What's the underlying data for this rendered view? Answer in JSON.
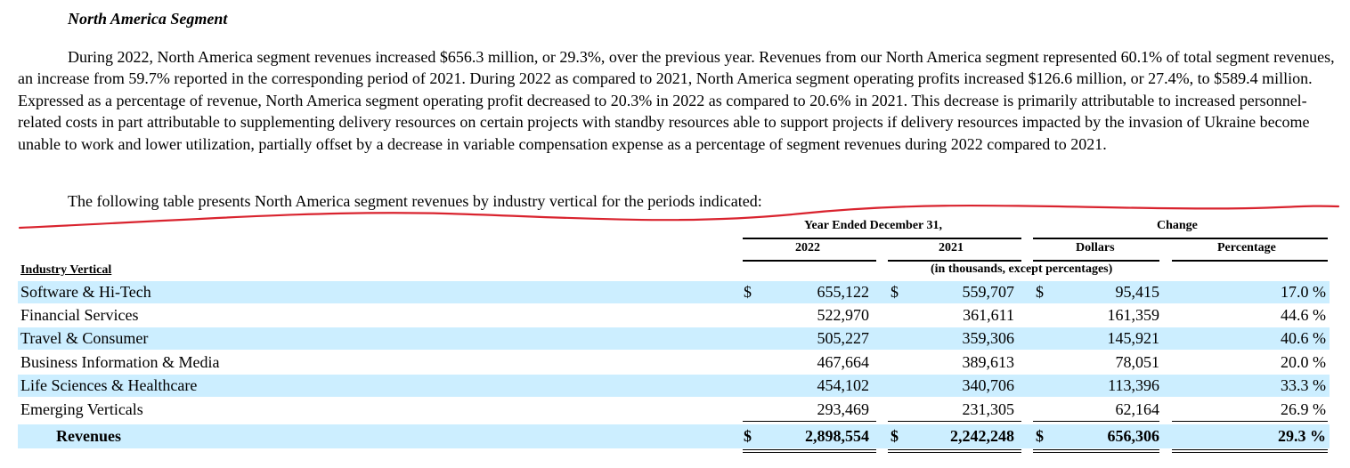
{
  "section_heading": "North America Segment",
  "paragraph": "During 2022, North America segment revenues increased $656.3 million, or 29.3%, over the previous year. Revenues from our North America segment represented 60.1% of total segment revenues, an increase from 59.7% reported in the corresponding period of 2021. During 2022 as compared to 2021, North America segment operating profits increased $126.6 million, or 27.4%, to $589.4 million. Expressed as a percentage of revenue, North America segment operating profit decreased to 20.3% in 2022 as compared to 20.6% in 2021. This decrease is primarily attributable to increased personnel-related costs in part attributable to supplementing delivery resources on certain projects with standby resources able to support projects if delivery resources impacted by the invasion of Ukraine become unable to work and lower utilization, partially offset by a decrease in variable compensation expense as a percentage of segment revenues during 2022 compared to 2021.",
  "table_intro": "The following table presents North America segment revenues by industry vertical for the periods indicated:",
  "annotation": {
    "color": "#d9232e"
  },
  "table": {
    "header": {
      "year_group": "Year Ended December 31,",
      "change_group": "Change",
      "col_2022": "2022",
      "col_2021": "2021",
      "col_dollars": "Dollars",
      "col_percentage": "Percentage",
      "units": "(in thousands, except percentages)",
      "row_header": "Industry Vertical"
    },
    "row_shade_color": "#cceeff",
    "rows": [
      {
        "label": "Software & Hi-Tech",
        "cur1": "$",
        "v2022": "655,122",
        "cur2": "$",
        "v2021": "559,707",
        "cur3": "$",
        "dollars": "95,415",
        "pct": "17.0 %"
      },
      {
        "label": "Financial Services",
        "v2022": "522,970",
        "v2021": "361,611",
        "dollars": "161,359",
        "pct": "44.6 %"
      },
      {
        "label": "Travel & Consumer",
        "v2022": "505,227",
        "v2021": "359,306",
        "dollars": "145,921",
        "pct": "40.6 %"
      },
      {
        "label": "Business Information & Media",
        "v2022": "467,664",
        "v2021": "389,613",
        "dollars": "78,051",
        "pct": "20.0 %"
      },
      {
        "label": "Life Sciences & Healthcare",
        "v2022": "454,102",
        "v2021": "340,706",
        "dollars": "113,396",
        "pct": "33.3 %"
      },
      {
        "label": "Emerging Verticals",
        "v2022": "293,469",
        "v2021": "231,305",
        "dollars": "62,164",
        "pct": "26.9 %"
      }
    ],
    "total": {
      "label": "Revenues",
      "cur1": "$",
      "v2022": "2,898,554",
      "cur2": "$",
      "v2021": "2,242,248",
      "cur3": "$",
      "dollars": "656,306",
      "pct": "29.3 %"
    }
  }
}
